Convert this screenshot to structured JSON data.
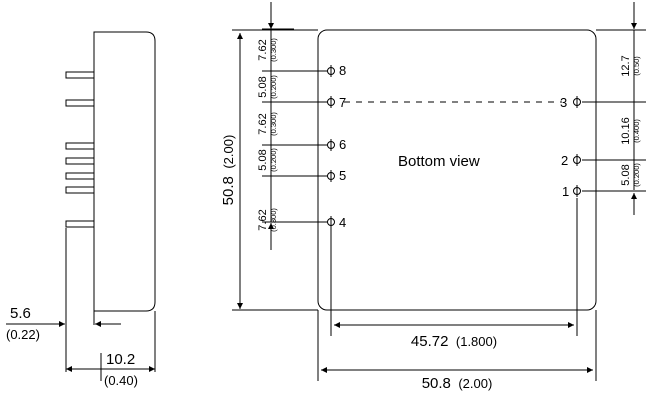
{
  "title": "Bottom view",
  "side_view": {
    "pin_offset_mm": "5.6",
    "pin_offset_in": "(0.22)",
    "depth_mm": "10.2",
    "depth_in": "(0.40)"
  },
  "bottom_view": {
    "height_mm": "50.8",
    "height_in": "(2.00)",
    "width_mm": "50.8",
    "width_in": "(2.00)",
    "pin_row_span_mm": "45.72",
    "pin_row_span_in": "(1.800)",
    "left_pitches": [
      {
        "mm": "7.62",
        "in": "(0.300)"
      },
      {
        "mm": "5.08",
        "in": "(0.200)"
      },
      {
        "mm": "7.62",
        "in": "(0.300)"
      },
      {
        "mm": "5.08",
        "in": "(0.200)"
      },
      {
        "mm": "7.62",
        "in": "(0.300)"
      }
    ],
    "right_pitches": [
      {
        "mm": "12.7",
        "in": "(0.50)"
      },
      {
        "mm": "10.16",
        "in": "(0.400)"
      },
      {
        "mm": "5.08",
        "in": "(0.200)"
      }
    ],
    "pins_left": [
      "8",
      "7",
      "6",
      "5",
      "4"
    ],
    "pins_right": [
      "3",
      "2",
      "1"
    ]
  },
  "arrow_color": "#000000",
  "line_color": "#000000"
}
